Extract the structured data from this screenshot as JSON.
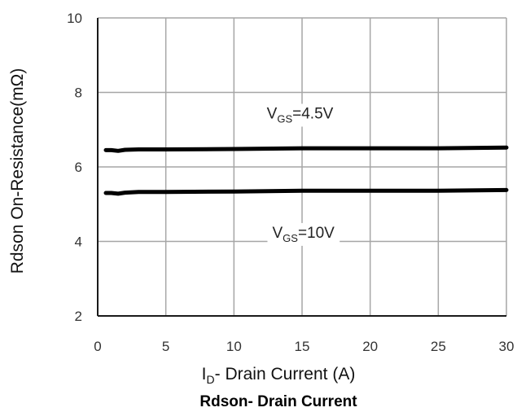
{
  "chart_data": {
    "type": "line",
    "title": "Rdson- Drain Current",
    "xlabel": {
      "main": "I",
      "sub": "D",
      "rest": "- Drain Current (A)"
    },
    "ylabel": "Rdson On-Resistance(mΩ)",
    "xlim": [
      0,
      30
    ],
    "ylim": [
      2,
      10
    ],
    "xticks": [
      "0",
      "5",
      "10",
      "15",
      "20",
      "25",
      "30"
    ],
    "yticks": [
      "2",
      "4",
      "6",
      "8",
      "10"
    ],
    "grid": true,
    "series": [
      {
        "name": {
          "main": "V",
          "sub": "GS",
          "rest": "=4.5V"
        },
        "x": [
          0.6,
          1,
          1.5,
          2,
          3,
          5,
          10,
          15,
          20,
          25,
          30
        ],
        "y": [
          6.45,
          6.45,
          6.43,
          6.46,
          6.47,
          6.47,
          6.48,
          6.5,
          6.5,
          6.5,
          6.52
        ]
      },
      {
        "name": {
          "main": "V",
          "sub": "GS",
          "rest": "=10V"
        },
        "x": [
          0.6,
          1,
          1.5,
          2,
          3,
          5,
          10,
          15,
          20,
          25,
          30
        ],
        "y": [
          5.3,
          5.3,
          5.28,
          5.31,
          5.33,
          5.33,
          5.34,
          5.36,
          5.36,
          5.36,
          5.38
        ]
      }
    ]
  }
}
